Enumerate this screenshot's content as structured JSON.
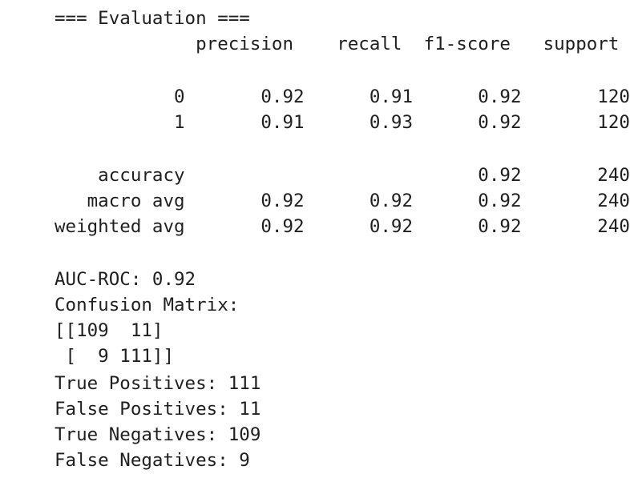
{
  "output": {
    "header": "=== Evaluation ===",
    "report_lines": [
      "             precision    recall  f1-score   support",
      "",
      "           0       0.92      0.91      0.92       120",
      "           1       0.91      0.93      0.92       120",
      "",
      "    accuracy                           0.92       240",
      "   macro avg       0.92      0.92      0.92       240",
      "weighted avg       0.92      0.92      0.92       240"
    ],
    "auc_roc": "AUC-ROC: 0.92",
    "confusion_label": "Confusion Matrix:",
    "confusion_rows": [
      "[[109  11]",
      " [  9 111]]"
    ],
    "true_positives": "True Positives: 111",
    "false_positives": "False Positives: 11",
    "true_negatives": "True Negatives: 109",
    "false_negatives": "False Negatives: 9"
  }
}
